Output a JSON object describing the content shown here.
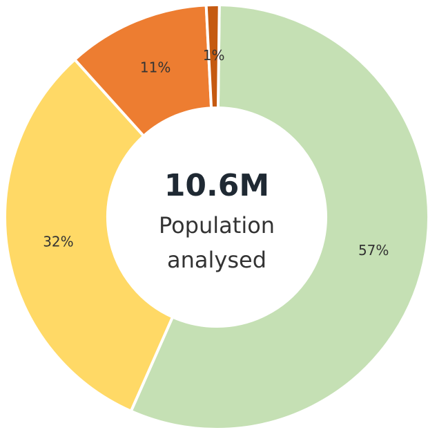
{
  "chart_data": {
    "type": "pie",
    "donut": true,
    "slices": [
      {
        "label": "57%",
        "value": 57,
        "color": "#c5e0b4"
      },
      {
        "label": "32%",
        "value": 32,
        "color": "#ffd966"
      },
      {
        "label": "11%",
        "value": 11,
        "color": "#ed7d31"
      },
      {
        "label": "1%",
        "value": 1,
        "color": "#c55a11"
      }
    ],
    "center": {
      "value": "10.6M",
      "caption_line1": "Population",
      "caption_line2": "analysed"
    }
  }
}
